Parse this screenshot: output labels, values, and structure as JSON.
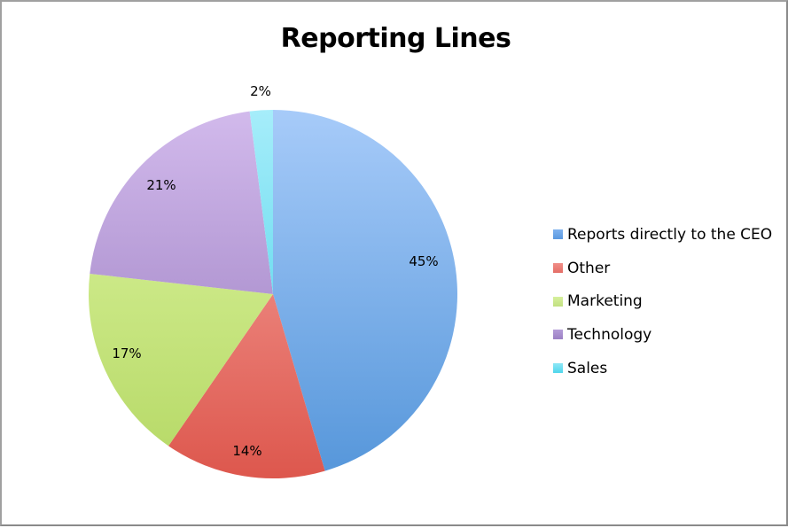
{
  "chart_data": {
    "type": "pie",
    "title": "Reporting Lines",
    "categories": [
      "Reports directly to the CEO",
      "Other",
      "Marketing",
      "Technology",
      "Sales"
    ],
    "values": [
      45,
      14,
      17,
      21,
      2
    ],
    "labels": [
      "45%",
      "14%",
      "17%",
      "21%",
      "2%"
    ],
    "colors": [
      {
        "light": "#a7cbf9",
        "dark": "#5596da"
      },
      {
        "light": "#f8a9a3",
        "dark": "#dd574d"
      },
      {
        "light": "#def6a2",
        "dark": "#b5d865"
      },
      {
        "light": "#d2baec",
        "dark": "#9476bb"
      },
      {
        "light": "#a6edfa",
        "dark": "#3ccee6"
      }
    ],
    "legend_position": "right",
    "start_angle_deg": 0,
    "direction": "clockwise"
  },
  "legend": {
    "items": [
      {
        "label": "Reports directly to the CEO",
        "color": "#5a98e0"
      },
      {
        "label": "Other",
        "color": "#e46d66"
      },
      {
        "label": "Marketing",
        "color": "#c2e081"
      },
      {
        "label": "Technology",
        "color": "#9b80c4"
      },
      {
        "label": "Sales",
        "color": "#4fd6ec"
      }
    ]
  }
}
